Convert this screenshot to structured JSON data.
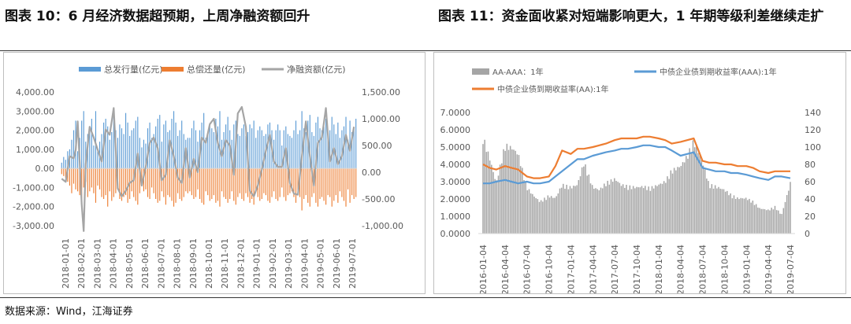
{
  "page": {
    "title_left": "图表 10：6 月经济数据超预期，上周净融资额回升",
    "title_right": "图表 11：资金面收紧对短端影响更大，1 年期等级利差继续走扩",
    "source": "数据来源：Wind，江海证券"
  },
  "colors": {
    "issue": "#5B9BD5",
    "repay": "#ED7D31",
    "net": "#A5A5A5",
    "spread": "#A5A5A5",
    "aaa": "#5B9BD5",
    "aa": "#ED7D31"
  },
  "chart_data": [
    {
      "id": "chart10",
      "type": "bar",
      "title": "",
      "legend": [
        "总发行量(亿元)",
        "总偿还量(亿元)",
        "净融资额(亿元)"
      ],
      "legend_position": "top",
      "grid": false,
      "y_left": {
        "range": [
          -3000,
          4000
        ],
        "ticks": [
          "4,000.00",
          "3,000.00",
          "2,000.00",
          "1,000.00",
          "0.00",
          "-1,000.00",
          "-2,000.00",
          "-3,000.00"
        ],
        "tick_values": [
          4000,
          3000,
          2000,
          1000,
          0,
          -1000,
          -2000,
          -3000
        ]
      },
      "y_right": {
        "range": [
          -1000,
          1500
        ],
        "ticks": [
          "1,500.00",
          "1,000.00",
          "500.00",
          "0.00",
          "-500.00",
          "-1,000.00"
        ],
        "tick_values": [
          1500,
          1000,
          500,
          0,
          -500,
          -1000
        ]
      },
      "x_ticks": [
        "2018-01-01",
        "2018-02-01",
        "2018-03-01",
        "2018-04-01",
        "2018-05-01",
        "2018-06-01",
        "2018-07-01",
        "2018-08-01",
        "2018-09-01",
        "2018-10-01",
        "2018-11-01",
        "2018-12-01",
        "2019-01-01",
        "2019-02-01",
        "2019-03-01",
        "2019-04-01",
        "2019-05-01",
        "2019-06-01",
        "2019-07-01"
      ],
      "series": [
        {
          "name": "总发行量(亿元)",
          "type": "bar",
          "axis": "left",
          "values": [
            300,
            600,
            450,
            900,
            1000,
            1500,
            2000,
            2500,
            900,
            1600,
            2500,
            3000,
            1400,
            1800,
            2200,
            2600,
            1200,
            3000,
            900,
            1400,
            1800,
            2400,
            2600,
            2200,
            1500,
            1900,
            2700,
            2000,
            1600,
            2300,
            2100,
            1800,
            2900,
            2400,
            1700,
            2000,
            2100,
            2500,
            2700,
            1600,
            1100,
            1500,
            1300,
            2100,
            2400,
            1600,
            1800,
            2200,
            2600,
            2800,
            1400,
            2300,
            2500,
            1900,
            2000,
            2600,
            3000,
            2400,
            1700,
            2000,
            2500,
            1800,
            1500,
            1600,
            1600,
            2100,
            2500,
            2000,
            1400,
            2000,
            2400,
            2900,
            1600,
            1800,
            2300,
            2100,
            1900,
            2600,
            2200,
            3000,
            1500,
            1900,
            2300,
            2700,
            2000,
            1500,
            2300,
            2500,
            1800,
            1700,
            2100,
            2300,
            1700,
            1900,
            2300,
            2100,
            2500,
            1600,
            2000,
            2200,
            2000,
            1700,
            1800,
            2300,
            2400,
            2000,
            1500,
            2000,
            2300,
            2000,
            1200,
            2000,
            2200,
            1800,
            1700,
            1600,
            2000,
            2500,
            1800,
            2000,
            3000,
            2100,
            1900,
            2500,
            2800,
            1900,
            1700,
            2400,
            2700,
            2100,
            2000,
            2200,
            2600,
            1900,
            2000,
            2700,
            2300,
            1800,
            2400,
            1600,
            2000,
            2200,
            2700,
            1500,
            2500,
            1900,
            2100,
            2600
          ]
        },
        {
          "name": "总偿还量(亿元)",
          "type": "bar",
          "axis": "left",
          "values": [
            -300,
            -400,
            -500,
            -700,
            -900,
            -1300,
            -800,
            -1100,
            -1200,
            -1400,
            -1600,
            -1000,
            -700,
            -1500,
            -1200,
            -1000,
            -1300,
            -1800,
            -900,
            -1100,
            -1500,
            -1600,
            -1400,
            -2000,
            -1200,
            -1700,
            -1500,
            -1300,
            -1100,
            -1600,
            -1700,
            -1500,
            -1400,
            -1800,
            -1600,
            -1200,
            -1500,
            -1700,
            -1900,
            -1300,
            -900,
            -1200,
            -1100,
            -1500,
            -1600,
            -1000,
            -1300,
            -1600,
            -1800,
            -1700,
            -1200,
            -1500,
            -1900,
            -1400,
            -1500,
            -1700,
            -2000,
            -1800,
            -1300,
            -1600,
            -1700,
            -1500,
            -1200,
            -1300,
            -1200,
            -1400,
            -1600,
            -1500,
            -1100,
            -1600,
            -1800,
            -1900,
            -1200,
            -1400,
            -1700,
            -1600,
            -1400,
            -1800,
            -1700,
            -2000,
            -1200,
            -1500,
            -1600,
            -1800,
            -1600,
            -1200,
            -1700,
            -1900,
            -1500,
            -1300,
            -1600,
            -1700,
            -1300,
            -1500,
            -1800,
            -1600,
            -1900,
            -1200,
            -1500,
            -1700,
            -1600,
            -1300,
            -1400,
            -1700,
            -1800,
            -1500,
            -1200,
            -1600,
            -1700,
            -1500,
            -1000,
            -1500,
            -1700,
            -1400,
            -1300,
            -1200,
            -1500,
            -1800,
            -1400,
            -1500,
            -2200,
            -1600,
            -1400,
            -1800,
            -2000,
            -1500,
            -1300,
            -1800,
            -2000,
            -1600,
            -1500,
            -1700,
            -1900,
            -1400,
            -1500,
            -2000,
            -1700,
            -1400,
            -1800,
            -1200,
            -1500,
            -1700,
            -2000,
            -1100,
            -1800,
            -1400,
            -1600,
            -1500
          ]
        },
        {
          "name": "净融资额(亿元)",
          "type": "line",
          "axis": "right",
          "x_index": [
            0,
            2,
            4,
            6,
            7,
            8,
            9,
            10,
            11,
            12,
            14,
            16,
            18,
            20,
            22,
            24,
            26,
            28,
            30,
            32,
            34,
            36,
            38,
            40,
            42,
            44,
            46,
            48,
            50,
            52,
            54,
            56,
            58,
            60,
            62,
            64,
            66,
            68,
            70,
            72,
            74,
            76,
            78,
            80,
            82,
            84,
            86,
            88,
            90,
            92,
            94,
            96,
            98,
            100,
            102,
            104,
            106,
            108,
            110,
            112,
            114,
            116,
            118,
            120,
            122,
            124,
            126,
            128,
            130,
            132,
            134,
            136,
            138,
            140,
            142,
            144,
            146
          ],
          "values": [
            -120,
            -180,
            300,
            260,
            420,
            950,
            200,
            -600,
            -1100,
            150,
            850,
            650,
            420,
            200,
            800,
            700,
            1200,
            -300,
            -450,
            -350,
            -200,
            -150,
            350,
            -250,
            100,
            550,
            650,
            450,
            -150,
            -50,
            600,
            300,
            -100,
            -200,
            450,
            -100,
            250,
            0,
            650,
            550,
            900,
            1000,
            550,
            300,
            600,
            500,
            -50,
            1100,
            1220,
            850,
            -350,
            -450,
            -250,
            50,
            400,
            700,
            200,
            100,
            100,
            450,
            -200,
            -400,
            -420,
            300,
            950,
            300,
            -250,
            550,
            650,
            1200,
            200,
            450,
            150,
            300,
            700,
            400,
            850
          ]
        }
      ]
    },
    {
      "id": "chart11",
      "type": "area",
      "title": "",
      "legend": [
        "AA-AAA：1年",
        "中债企业债到期收益率(AAA):1年",
        "中债企业债到期收益率(AA):1年"
      ],
      "legend_position": "top",
      "grid": false,
      "y_left": {
        "range": [
          0,
          7
        ],
        "ticks": [
          "7.0000",
          "6.0000",
          "5.0000",
          "4.0000",
          "3.0000",
          "2.0000",
          "1.0000",
          "0.0000"
        ],
        "tick_values": [
          7,
          6,
          5,
          4,
          3,
          2,
          1,
          0
        ]
      },
      "y_right": {
        "range": [
          0,
          140
        ],
        "ticks": [
          "140",
          "120",
          "100",
          "80",
          "60",
          "40",
          "20",
          "0"
        ],
        "tick_values": [
          140,
          120,
          100,
          80,
          60,
          40,
          20,
          0
        ]
      },
      "x_ticks": [
        "2016-01-04",
        "2016-04-04",
        "2016-07-04",
        "2016-10-04",
        "2017-01-04",
        "2017-04-04",
        "2017-07-04",
        "2017-10-04",
        "2018-01-04",
        "2018-04-04",
        "2018-07-04",
        "2018-10-04",
        "2019-01-04",
        "2019-04-04",
        "2019-07-04"
      ],
      "series": [
        {
          "name": "AA-AAA：1年",
          "type": "bar",
          "axis": "right",
          "x": [
            0,
            0.3,
            0.6,
            1,
            1.3,
            1.6,
            2,
            2.3,
            2.6,
            3,
            3.3,
            3.6,
            4,
            4.3,
            4.6,
            5,
            5.3,
            5.6,
            6,
            6.3,
            6.6,
            7,
            7.3,
            7.6,
            8,
            8.3,
            8.6,
            9,
            9.3,
            9.6,
            10,
            10.3,
            10.6,
            11,
            11.3,
            11.6,
            12,
            12.3,
            12.6,
            13,
            13.3,
            13.6,
            14
          ],
          "values": [
            115,
            90,
            60,
            105,
            102,
            95,
            55,
            45,
            38,
            45,
            42,
            58,
            55,
            58,
            85,
            55,
            52,
            60,
            65,
            58,
            56,
            55,
            56,
            54,
            58,
            62,
            75,
            80,
            92,
            110,
            85,
            58,
            56,
            52,
            46,
            42,
            42,
            38,
            30,
            28,
            32,
            22,
            60
          ]
        },
        {
          "name": "中债企业债到期收益率(AAA):1年",
          "type": "line",
          "axis": "left",
          "x": [
            0,
            0.3,
            0.6,
            1,
            1.3,
            1.6,
            2,
            2.3,
            2.6,
            3,
            3.3,
            3.6,
            4,
            4.3,
            4.6,
            5,
            5.3,
            5.6,
            6,
            6.3,
            6.6,
            7,
            7.3,
            7.6,
            8,
            8.3,
            8.6,
            9,
            9.3,
            9.6,
            10,
            10.3,
            10.6,
            11,
            11.3,
            11.6,
            12,
            12.3,
            12.6,
            13,
            13.3,
            13.6,
            14
          ],
          "values": [
            2.9,
            2.9,
            3.0,
            3.1,
            3.0,
            2.9,
            3.0,
            2.9,
            2.9,
            3.0,
            3.3,
            3.6,
            4.0,
            4.3,
            4.3,
            4.5,
            4.6,
            4.7,
            4.8,
            4.9,
            4.9,
            5.0,
            5.1,
            5.1,
            5.0,
            5.0,
            4.8,
            4.5,
            4.6,
            4.7,
            3.8,
            3.7,
            3.6,
            3.6,
            3.5,
            3.5,
            3.4,
            3.3,
            3.2,
            3.1,
            3.3,
            3.3,
            3.2
          ]
        },
        {
          "name": "中债企业债到期收益率(AA):1年",
          "type": "line",
          "axis": "left",
          "x": [
            0,
            0.3,
            0.6,
            1,
            1.3,
            1.6,
            2,
            2.3,
            2.6,
            3,
            3.3,
            3.6,
            4,
            4.3,
            4.6,
            5,
            5.3,
            5.6,
            6,
            6.3,
            6.6,
            7,
            7.3,
            7.6,
            8,
            8.3,
            8.6,
            9,
            9.3,
            9.6,
            10,
            10.3,
            10.6,
            11,
            11.3,
            11.6,
            12,
            12.3,
            12.6,
            13,
            13.3,
            13.6,
            14
          ],
          "values": [
            4.0,
            3.8,
            3.7,
            3.9,
            3.8,
            3.7,
            3.3,
            3.2,
            3.2,
            3.3,
            3.9,
            4.8,
            4.6,
            4.9,
            4.9,
            5.0,
            5.1,
            5.2,
            5.4,
            5.5,
            5.5,
            5.5,
            5.6,
            5.6,
            5.5,
            5.4,
            5.2,
            5.3,
            5.4,
            5.5,
            4.2,
            4.1,
            4.1,
            4.0,
            4.0,
            3.9,
            3.9,
            3.8,
            3.6,
            3.5,
            3.6,
            3.6,
            3.6
          ]
        }
      ]
    }
  ]
}
